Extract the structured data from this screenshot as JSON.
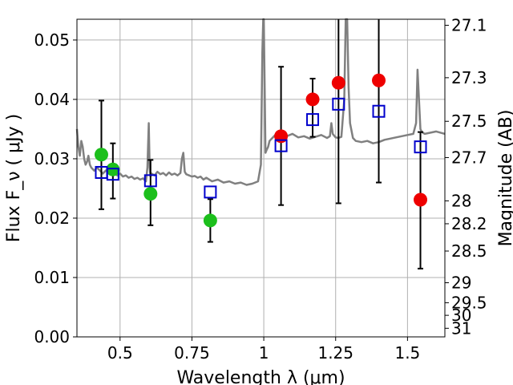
{
  "chart_data": {
    "type": "scatter",
    "xlabel": "Wavelength  λ (μm)",
    "ylabel": "Flux  F_ν  ( μJy )",
    "y2label": "Magnitude (AB)",
    "xlim": [
      0.35,
      1.63
    ],
    "ylim": [
      0.0,
      0.0535
    ],
    "grid": true,
    "x_ticks": [
      0.5,
      0.75,
      1.0,
      1.25,
      1.5
    ],
    "x_tick_labels": [
      "0.5",
      "0.75",
      "1",
      "1.25",
      "1.5"
    ],
    "y_ticks": [
      0.0,
      0.01,
      0.02,
      0.03,
      0.04,
      0.05
    ],
    "y_tick_labels": [
      "0.00",
      "0.01",
      "0.02",
      "0.03",
      "0.04",
      "0.05"
    ],
    "y2_ticks": [
      27.1,
      27.3,
      27.5,
      27.7,
      28.0,
      28.2,
      28.5,
      29.0,
      29.5,
      30.0,
      31.0
    ],
    "y2_tick_labels": [
      "27.1",
      "27.3",
      "27.5",
      "27.7",
      "28",
      "28.2",
      "28.5",
      "29",
      "29.5",
      "30",
      "31"
    ],
    "colors": {
      "model": "#808080",
      "green": "#1cbf1c",
      "red": "#ee0000",
      "square": "#0000cc",
      "errorbar": "#000000",
      "grid": "#b0b0b0"
    },
    "series": [
      {
        "marker": "square",
        "x": [
          0.435,
          0.475,
          0.606,
          0.814,
          1.06,
          1.17,
          1.26,
          1.4,
          1.545
        ],
        "y": [
          0.0277,
          0.0274,
          0.0263,
          0.0244,
          0.0322,
          0.0366,
          0.0392,
          0.038,
          0.032
        ],
        "err_low": [
          0.0215,
          0.0233,
          0.0188,
          0.016,
          0.0222,
          0.0337,
          0.0225,
          0.026,
          0.0115
        ],
        "err_high": [
          0.0398,
          0.0326,
          0.0298,
          0.0232,
          0.0455,
          0.0435,
          0.0535,
          0.0535,
          0.0345
        ]
      },
      {
        "marker": "green-circle",
        "x": [
          0.435,
          0.475,
          0.606,
          0.814
        ],
        "y": [
          0.0307,
          0.0282,
          0.0241,
          0.0196
        ]
      },
      {
        "marker": "red-circle",
        "x": [
          1.06,
          1.17,
          1.26,
          1.4,
          1.545
        ],
        "y": [
          0.0338,
          0.04,
          0.0428,
          0.0432,
          0.0231
        ]
      },
      {
        "type": "line",
        "x": [
          0.35,
          0.355,
          0.36,
          0.365,
          0.37,
          0.375,
          0.38,
          0.385,
          0.39,
          0.395,
          0.4,
          0.41,
          0.42,
          0.43,
          0.44,
          0.45,
          0.46,
          0.47,
          0.48,
          0.49,
          0.5,
          0.51,
          0.52,
          0.53,
          0.54,
          0.55,
          0.56,
          0.57,
          0.58,
          0.59,
          0.595,
          0.6,
          0.603,
          0.606,
          0.61,
          0.62,
          0.63,
          0.64,
          0.65,
          0.66,
          0.67,
          0.68,
          0.69,
          0.7,
          0.71,
          0.715,
          0.72,
          0.725,
          0.73,
          0.74,
          0.75,
          0.76,
          0.77,
          0.78,
          0.79,
          0.8,
          0.82,
          0.84,
          0.86,
          0.88,
          0.9,
          0.92,
          0.94,
          0.96,
          0.98,
          0.99,
          0.995,
          0.998,
          1.0,
          1.003,
          1.006,
          1.01,
          1.015,
          1.02,
          1.03,
          1.04,
          1.05,
          1.06,
          1.08,
          1.1,
          1.12,
          1.14,
          1.16,
          1.18,
          1.2,
          1.22,
          1.23,
          1.235,
          1.24,
          1.25,
          1.26,
          1.27,
          1.28,
          1.285,
          1.29,
          1.295,
          1.3,
          1.31,
          1.32,
          1.34,
          1.36,
          1.38,
          1.4,
          1.42,
          1.44,
          1.46,
          1.48,
          1.5,
          1.52,
          1.53,
          1.535,
          1.54,
          1.545,
          1.55,
          1.56,
          1.58,
          1.6,
          1.63
        ],
        "y": [
          0.035,
          0.032,
          0.0305,
          0.033,
          0.032,
          0.03,
          0.029,
          0.0295,
          0.0305,
          0.029,
          0.0285,
          0.028,
          0.0285,
          0.028,
          0.0275,
          0.028,
          0.0278,
          0.0282,
          0.0278,
          0.0272,
          0.0275,
          0.027,
          0.0272,
          0.0268,
          0.027,
          0.0266,
          0.0268,
          0.0265,
          0.0267,
          0.0262,
          0.0285,
          0.036,
          0.0285,
          0.027,
          0.0275,
          0.0272,
          0.0278,
          0.0274,
          0.0276,
          0.0272,
          0.0277,
          0.0273,
          0.0275,
          0.0272,
          0.0276,
          0.03,
          0.031,
          0.0278,
          0.0274,
          0.0272,
          0.027,
          0.0271,
          0.0268,
          0.027,
          0.0265,
          0.0268,
          0.0262,
          0.0265,
          0.026,
          0.0262,
          0.0258,
          0.026,
          0.0256,
          0.0258,
          0.0262,
          0.029,
          0.048,
          0.0535,
          0.0535,
          0.042,
          0.031,
          0.0315,
          0.032,
          0.033,
          0.0335,
          0.034,
          0.0345,
          0.034,
          0.0338,
          0.0342,
          0.0336,
          0.0338,
          0.0334,
          0.0337,
          0.034,
          0.0335,
          0.0338,
          0.036,
          0.0342,
          0.0336,
          0.0335,
          0.0337,
          0.04,
          0.0535,
          0.0535,
          0.042,
          0.036,
          0.0335,
          0.033,
          0.0328,
          0.033,
          0.0326,
          0.0328,
          0.0332,
          0.0334,
          0.0336,
          0.0338,
          0.034,
          0.0342,
          0.036,
          0.045,
          0.04,
          0.035,
          0.0345,
          0.0342,
          0.0344,
          0.0346,
          0.0342
        ]
      }
    ]
  }
}
